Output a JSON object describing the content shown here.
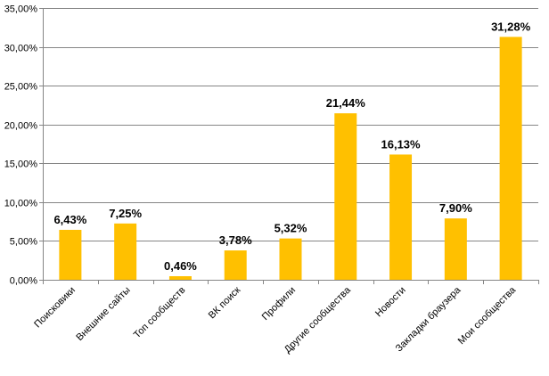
{
  "chart_data": {
    "type": "bar",
    "title": "",
    "xlabel": "",
    "ylabel": "",
    "categories": [
      "Поисковики",
      "Внешние сайты",
      "Топ сообществ",
      "ВК поиск",
      "Профили",
      "Другие сообщества",
      "Новости",
      "Закладки браузера",
      "Мои сообщества"
    ],
    "values": [
      6.43,
      7.25,
      0.46,
      3.78,
      5.32,
      21.44,
      16.13,
      7.9,
      31.28
    ],
    "data_labels": [
      "6,43%",
      "7,25%",
      "0,46%",
      "3,78%",
      "5,32%",
      "21,44%",
      "16,13%",
      "7,90%",
      "31,28%"
    ],
    "ylim": [
      0,
      35
    ],
    "y_ticks": [
      0,
      5,
      10,
      15,
      20,
      25,
      30,
      35
    ],
    "y_tick_labels": [
      "0,00%",
      "5,00%",
      "10,00%",
      "15,00%",
      "20,00%",
      "25,00%",
      "30,00%",
      "35,00%"
    ],
    "grid": true,
    "legend": "none",
    "colors": {
      "bar": "#FFC000",
      "grid": "#868686",
      "axis": "#868686",
      "text": "#000000"
    }
  }
}
